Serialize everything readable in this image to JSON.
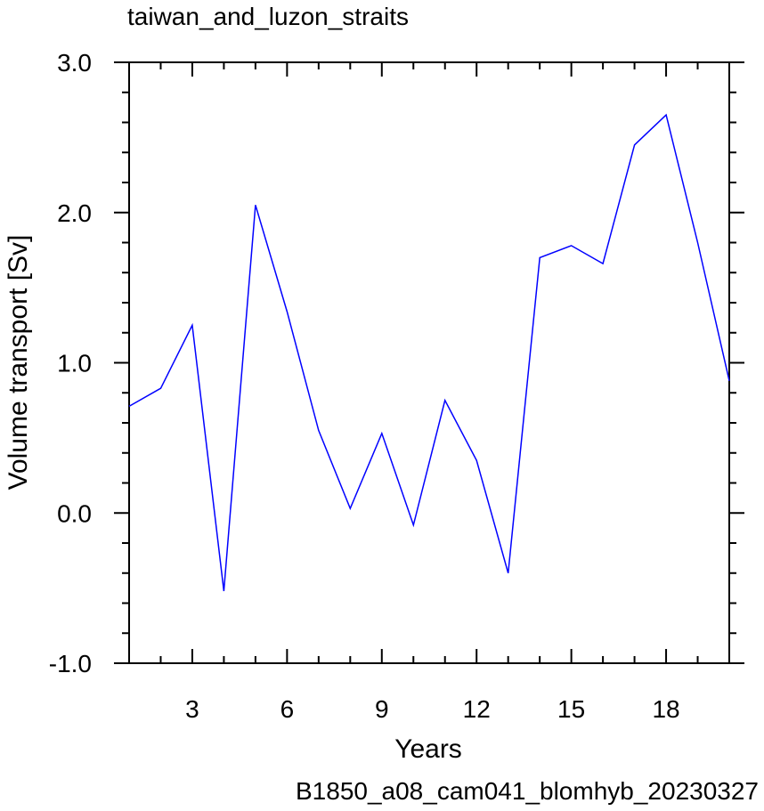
{
  "chart_data": {
    "type": "line",
    "title": "taiwan_and_luzon_straits",
    "xlabel": "Years",
    "ylabel": "Volume transport [Sv]",
    "footer": "B1850_a08_cam041_blomhyb_20230327",
    "xlim": [
      1,
      20
    ],
    "ylim": [
      -1.0,
      3.0
    ],
    "x_ticks": [
      3,
      6,
      9,
      12,
      15,
      18
    ],
    "y_ticks": [
      -1.0,
      0.0,
      1.0,
      2.0,
      3.0
    ],
    "y_tick_labels": [
      "-1.0",
      "0.0",
      "1.0",
      "2.0",
      "3.0"
    ],
    "grid": false,
    "series": [
      {
        "color": "#0000ff",
        "x": [
          1,
          2,
          3,
          4,
          5,
          6,
          7,
          8,
          9,
          10,
          11,
          12,
          13,
          14,
          15,
          16,
          17,
          18,
          19,
          20
        ],
        "values": [
          0.71,
          0.83,
          1.25,
          -0.52,
          2.05,
          1.34,
          0.55,
          0.03,
          0.53,
          -0.08,
          0.75,
          0.35,
          -0.4,
          1.7,
          1.78,
          1.66,
          2.45,
          2.65,
          1.8,
          0.88
        ]
      }
    ],
    "footer_color": "#0000ff",
    "axis_color": "#000000"
  }
}
